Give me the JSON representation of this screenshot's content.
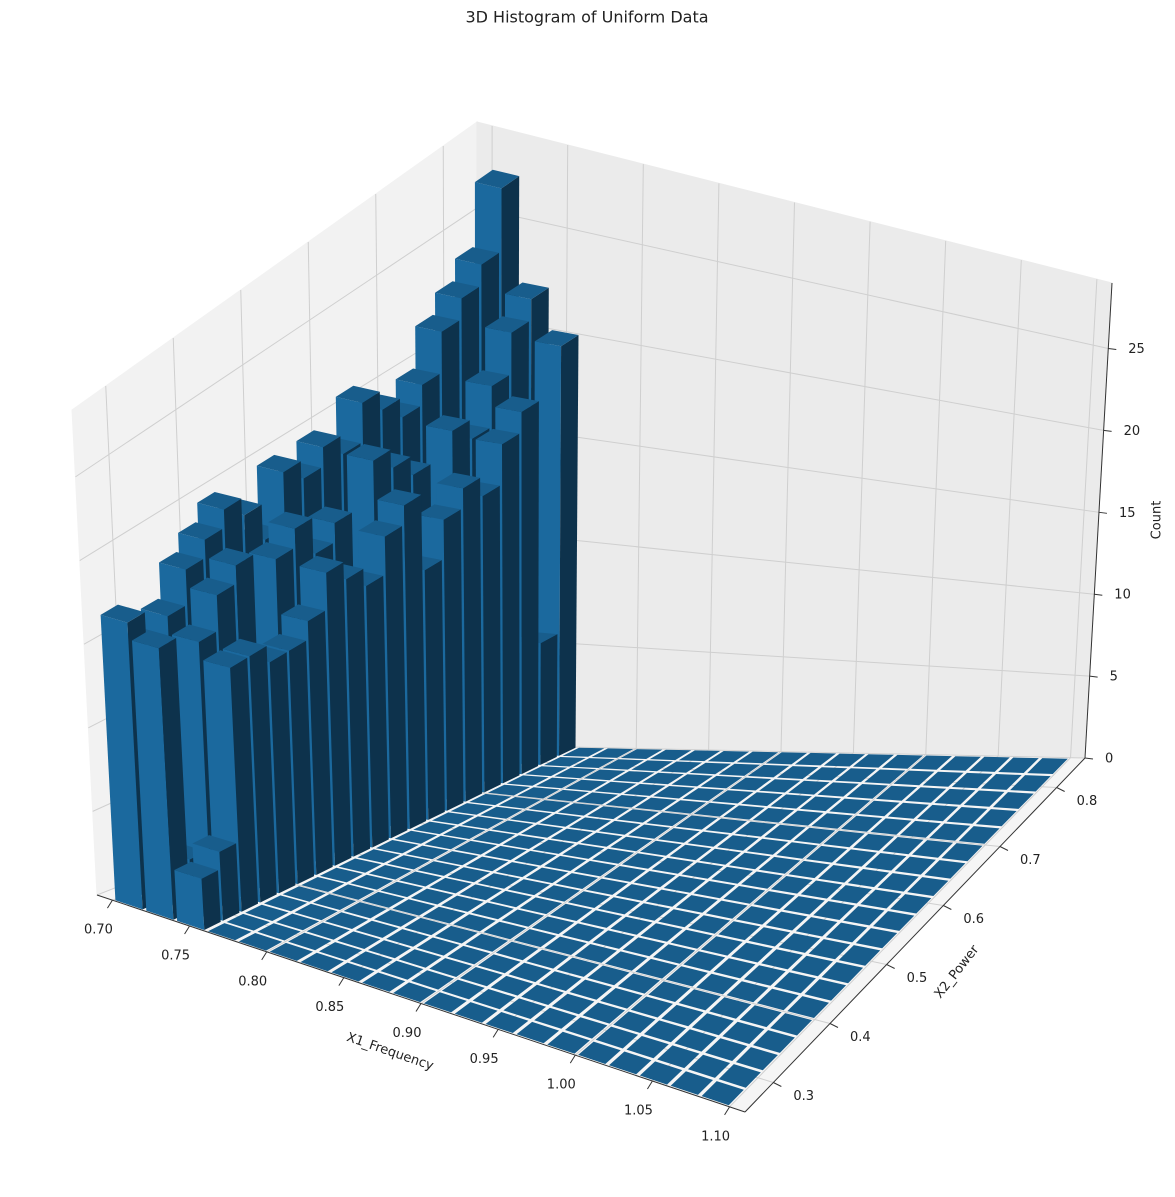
{
  "chart_data": {
    "type": "bar3d",
    "title": "3D Histogram of Uniform Data",
    "xlabel": "X1_Frequency",
    "ylabel": "X2_Power",
    "zlabel": "Count",
    "color": "#1f77b4",
    "grid": true,
    "x_edges": [
      0.7,
      0.72,
      0.74,
      0.76,
      0.78,
      0.8,
      0.82,
      0.84,
      0.86,
      0.88,
      0.9,
      0.92,
      0.94,
      0.96,
      0.98,
      1.0,
      1.02,
      1.04,
      1.06,
      1.08,
      1.1
    ],
    "y_edges": [
      0.25,
      0.28,
      0.31,
      0.34,
      0.37,
      0.4,
      0.43,
      0.46,
      0.49,
      0.52,
      0.55,
      0.58,
      0.61,
      0.64,
      0.67,
      0.7,
      0.73,
      0.76,
      0.79,
      0.82,
      0.85
    ],
    "counts": [
      [
        17,
        15,
        16,
        18,
        19,
        20,
        19,
        17,
        20,
        19,
        20,
        19,
        21,
        20,
        19,
        20,
        22,
        23,
        24,
        27
      ],
      [
        16,
        3,
        15,
        17,
        18,
        7,
        17,
        18,
        16,
        17,
        9,
        19,
        18,
        17,
        10,
        18,
        17,
        19,
        21,
        22
      ],
      [
        3,
        4,
        14,
        14,
        13,
        13,
        14,
        16,
        15,
        14,
        16,
        17,
        13,
        15,
        16,
        15,
        17,
        18,
        6,
        20
      ],
      [
        0,
        0,
        0,
        0,
        0,
        0,
        0,
        0,
        0,
        0,
        0,
        0,
        0,
        0,
        0,
        0,
        0,
        0,
        0,
        0
      ],
      [
        0,
        0,
        0,
        0,
        0,
        0,
        0,
        0,
        0,
        0,
        0,
        0,
        0,
        0,
        0,
        0,
        0,
        0,
        0,
        0
      ],
      [
        0,
        0,
        0,
        0,
        0,
        0,
        0,
        0,
        0,
        0,
        0,
        0,
        0,
        0,
        0,
        0,
        0,
        0,
        0,
        0
      ],
      [
        0,
        0,
        0,
        0,
        0,
        0,
        0,
        0,
        0,
        0,
        0,
        0,
        0,
        0,
        0,
        0,
        0,
        0,
        0,
        0
      ],
      [
        0,
        0,
        0,
        0,
        0,
        0,
        0,
        0,
        0,
        0,
        0,
        0,
        0,
        0,
        0,
        0,
        0,
        0,
        0,
        0
      ],
      [
        0,
        0,
        0,
        0,
        0,
        0,
        0,
        0,
        0,
        0,
        0,
        0,
        0,
        0,
        0,
        0,
        0,
        0,
        0,
        0
      ],
      [
        0,
        0,
        0,
        0,
        0,
        0,
        0,
        0,
        0,
        0,
        0,
        0,
        0,
        0,
        0,
        0,
        0,
        0,
        0,
        0
      ],
      [
        0,
        0,
        0,
        0,
        0,
        0,
        0,
        0,
        0,
        0,
        0,
        0,
        0,
        0,
        0,
        0,
        0,
        0,
        0,
        0
      ],
      [
        0,
        0,
        0,
        0,
        0,
        0,
        0,
        0,
        0,
        0,
        0,
        0,
        0,
        0,
        0,
        0,
        0,
        0,
        0,
        0
      ],
      [
        0,
        0,
        0,
        0,
        0,
        0,
        0,
        0,
        0,
        0,
        0,
        0,
        0,
        0,
        0,
        0,
        0,
        0,
        0,
        0
      ],
      [
        0,
        0,
        0,
        0,
        0,
        0,
        0,
        0,
        0,
        0,
        0,
        0,
        0,
        0,
        0,
        0,
        0,
        0,
        0,
        0
      ],
      [
        0,
        0,
        0,
        0,
        0,
        0,
        0,
        0,
        0,
        0,
        0,
        0,
        0,
        0,
        0,
        0,
        0,
        0,
        0,
        0
      ],
      [
        0,
        0,
        0,
        0,
        0,
        0,
        0,
        0,
        0,
        0,
        0,
        0,
        0,
        0,
        0,
        0,
        0,
        0,
        0,
        0
      ],
      [
        0,
        0,
        0,
        0,
        0,
        0,
        0,
        0,
        0,
        0,
        0,
        0,
        0,
        0,
        0,
        0,
        0,
        0,
        0,
        0
      ],
      [
        0,
        0,
        0,
        0,
        0,
        0,
        0,
        0,
        0,
        0,
        0,
        0,
        0,
        0,
        0,
        0,
        0,
        0,
        0,
        0
      ],
      [
        0,
        0,
        0,
        0,
        0,
        0,
        0,
        0,
        0,
        0,
        0,
        0,
        0,
        0,
        0,
        0,
        0,
        0,
        0,
        0
      ],
      [
        0,
        0,
        0,
        0,
        0,
        0,
        0,
        0,
        0,
        0,
        0,
        0,
        0,
        0,
        0,
        0,
        0,
        0,
        0,
        0
      ]
    ],
    "xlim": [
      0.69,
      1.11
    ],
    "ylim": [
      0.25,
      0.85
    ],
    "zlim": [
      0,
      29
    ],
    "xticks": [
      {
        "value": 0.7,
        "label": "0.70"
      },
      0.75,
      {
        "value": 0.8,
        "label": "0.80"
      },
      0.85,
      {
        "value": 0.9,
        "label": "0.90"
      },
      0.95,
      {
        "value": 1.0,
        "label": "1.00"
      },
      1.05,
      {
        "value": 1.1,
        "label": "1.10"
      }
    ],
    "yticks": [
      0.3,
      0.4,
      0.5,
      0.6,
      0.7,
      0.8
    ],
    "zticks": [
      0,
      5,
      10,
      15,
      20,
      25
    ]
  }
}
